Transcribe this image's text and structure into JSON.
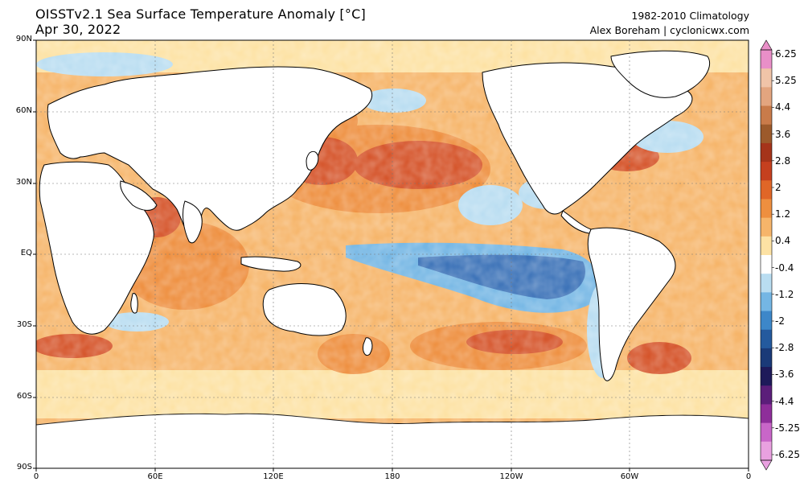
{
  "header": {
    "title": "OISSTv2.1 Sea Surface Temperature Anomaly [°C]",
    "date": "Apr 30, 2022",
    "climatology": "1982-2010 Climatology",
    "credit": "Alex Boreham | cyclonicwx.com"
  },
  "axes": {
    "y_labels": [
      "90N",
      "60N",
      "30N",
      "EQ",
      "30S",
      "60S",
      "90S"
    ],
    "x_labels": [
      "0",
      "60E",
      "120E",
      "180",
      "120W",
      "60W",
      "0"
    ]
  },
  "colorbar": {
    "labels": [
      "6.25",
      "5.25",
      "4.4",
      "3.6",
      "2.8",
      "2",
      "1.2",
      "0.4",
      "-0.4",
      "-1.2",
      "-2",
      "-2.8",
      "-3.6",
      "-4.4",
      "-5.25",
      "-6.25"
    ],
    "colors": [
      "#e98fc8",
      "#f0c4a8",
      "#e3a57f",
      "#c97b4a",
      "#9c5a2b",
      "#a5341a",
      "#c5401f",
      "#e06627",
      "#ee8f3f",
      "#f6b56a",
      "#fde2a4",
      "#ffffff",
      "#b9ddf1",
      "#74b6e4",
      "#3d87c9",
      "#245a9e",
      "#1a3a78",
      "#1e1a5a",
      "#5b1e7a",
      "#8e2e9a",
      "#c866c8",
      "#e9a1e0"
    ],
    "land_color": "#ffffff",
    "ocean_colors": {
      "warm_light": "#fde2a4",
      "warm": "#f6b56a",
      "warm_strong": "#ee8f3f",
      "hot": "#d5542a",
      "cool_light": "#b9ddf1",
      "cool": "#74b6e4",
      "cold": "#3d73b8",
      "ice": "#ffffff"
    }
  }
}
